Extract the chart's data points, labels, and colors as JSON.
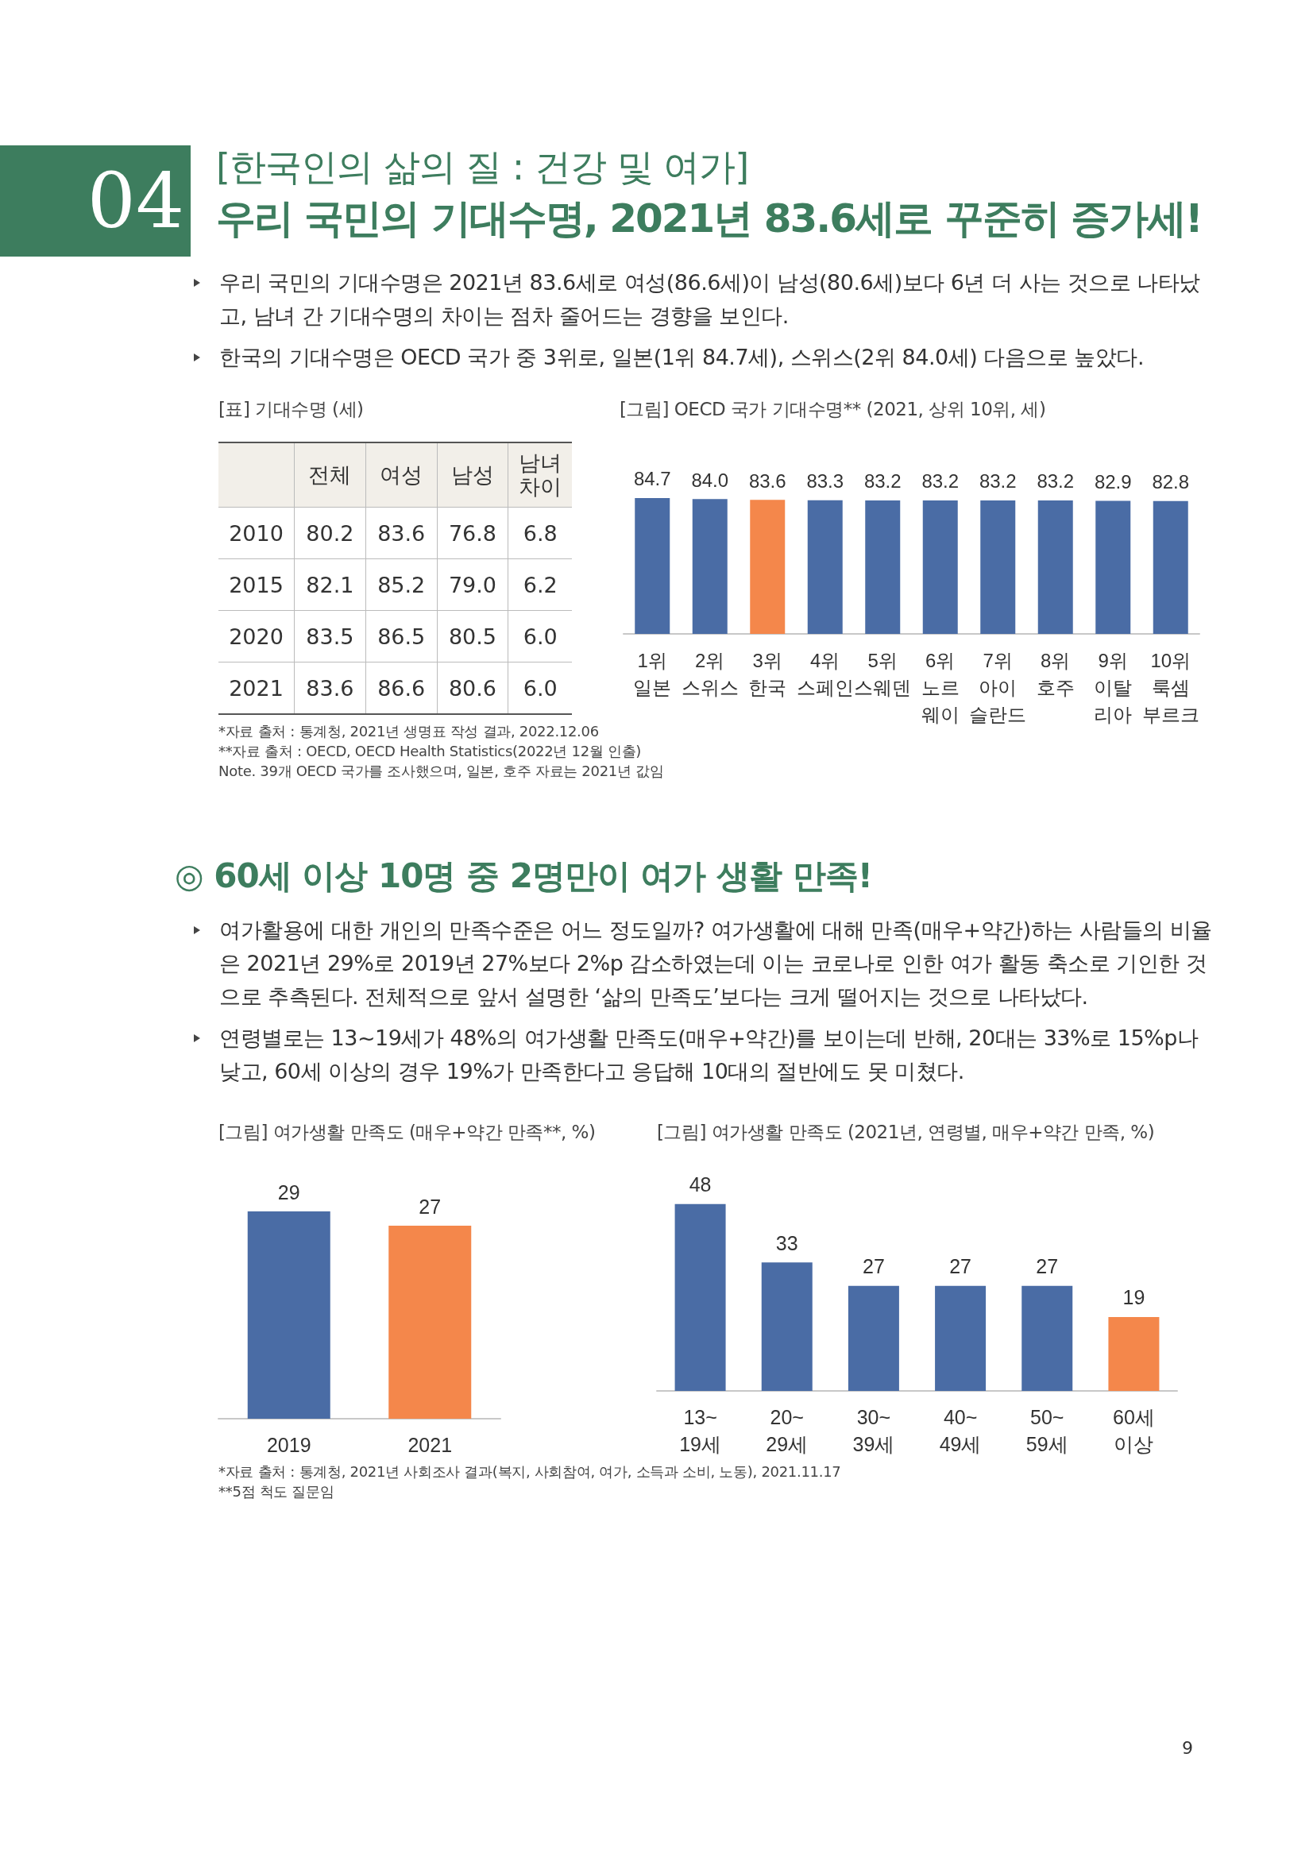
{
  "chart_data": [
    {
      "type": "other",
      "title": "[한국인의 삶의 질 : 건강 및 여가]",
      "subtitle": "우리 국민의 기대수명, 2021년 83.6세로 꾸준히 증가세!",
      "annotations": [
        "04",
        "우리 국민의 기대수명은 2021년 83.6세로 여성(86.6세)이 남성(80.6세)보다 6년 더 사는 것으로 나타났고, 남녀 간 기대수명의 차이는 점차 줄어드는 경향을 보인다.",
        "한국의 기대수명은 OECD 국가 중 3위로, 일본(1위 84.7세), 스위스(2위 84.0세) 다음으로 높았다."
      ]
    },
    {
      "type": "other",
      "title": "[표] 기대수명 (세)",
      "categories": [
        "전체",
        "여성",
        "남성",
        "남녀\n차이"
      ],
      "y_categories": [
        "2010",
        "2015",
        "2020",
        "2021"
      ],
      "cell_labels": [
        [
          "80.2",
          "83.6",
          "76.8",
          "6.8"
        ],
        [
          "82.1",
          "85.2",
          "79.0",
          "6.2"
        ],
        [
          "83.5",
          "86.5",
          "80.5",
          "6.0"
        ],
        [
          "83.6",
          "86.6",
          "80.6",
          "6.0"
        ]
      ],
      "annotations": [
        "*자료 출처 : 통계청, 2021년 생명표 작성 결과, 2022.12.06",
        "**자료 출처 : OECD, OECD Health Statistics(2022년 12월 인출)",
        "Note. 39개 OECD 국가를 조사했으며, 일본, 호주 자료는 2021년 값임"
      ]
    },
    {
      "type": "bar",
      "title": "[그림] OECD 국가 기대수명** (2021, 상위 10위, 세)",
      "categories": [
        "1위\n일본",
        "2위\n스위스",
        "3위\n한국",
        "4위\n스페인",
        "5위\n스웨덴",
        "6위\n노르\n웨이",
        "7위\n아이\n슬란드",
        "8위\n호주",
        "9위\n이탈\n리아",
        "10위\n룩셈\n부르크"
      ],
      "values": [
        84.7,
        84.0,
        83.6,
        83.3,
        83.2,
        83.2,
        83.2,
        83.2,
        82.9,
        82.8
      ],
      "value_labels": [
        "84.7",
        "84.0",
        "83.6",
        "83.3",
        "83.2",
        "83.2",
        "83.2",
        "83.2",
        "82.9",
        "82.8"
      ],
      "colors": [
        "#4a6ca5",
        "#4a6ca5",
        "#f4874b",
        "#4a6ca5",
        "#4a6ca5",
        "#4a6ca5",
        "#4a6ca5",
        "#4a6ca5",
        "#4a6ca5",
        "#4a6ca5"
      ],
      "data_labels": false
    },
    {
      "type": "other",
      "title": "◎ 60세 이상 10명 중 2명만이 여가 생활 만족!",
      "annotations": [
        "여가활용에 대한 개인의 만족수준은 어느 정도일까? 여가생활에 대해 만족(매우+약간)하는 사람들의 비율은 2021년 29%로 2019년 27%보다 2%p 감소하였는데 이는 코로나로 인한 여가 활동 축소로 기인한 것으로 추측된다. 전체적으로 앞서 설명한 ‘삶의 만족도’보다는 크게 떨어지는 것으로 나타났다.",
        "연령별로는 13~19세가 48%의 여가생활 만족도(매우+약간)를 보이는데 반해, 20대는 33%로 15%p나 낮고, 60세 이상의 경우 19%가 만족한다고 응답해 10대의 절반에도 못 미쳤다."
      ]
    },
    {
      "type": "bar",
      "title": "[그림] 여가생활 만족도 (매우+약간 만족**, %)",
      "categories": [
        "2019",
        "2021"
      ],
      "values": [
        29,
        27
      ],
      "colors": [
        "#4a6ca5",
        "#f4874b"
      ],
      "data_labels": true
    },
    {
      "type": "bar",
      "title": "[그림] 여가생활 만족도 (2021년, 연령별, 매우+약간 만족, %)",
      "categories": [
        "13~\n19세",
        "20~\n29세",
        "30~\n39세",
        "40~\n49세",
        "50~\n59세",
        "60세\n이상"
      ],
      "values": [
        48,
        33,
        27,
        27,
        27,
        19
      ],
      "colors": [
        "#4a6ca5",
        "#4a6ca5",
        "#4a6ca5",
        "#4a6ca5",
        "#4a6ca5",
        "#f4874b"
      ],
      "data_labels": true,
      "annotations": [
        "*자료 출처 : 통계청, 2021년 사회조사 결과(복지, 사회참여, 여가, 소득과 소비, 노동), 2021.11.17",
        "**5점 척도 질문임",
        "9"
      ]
    }
  ]
}
